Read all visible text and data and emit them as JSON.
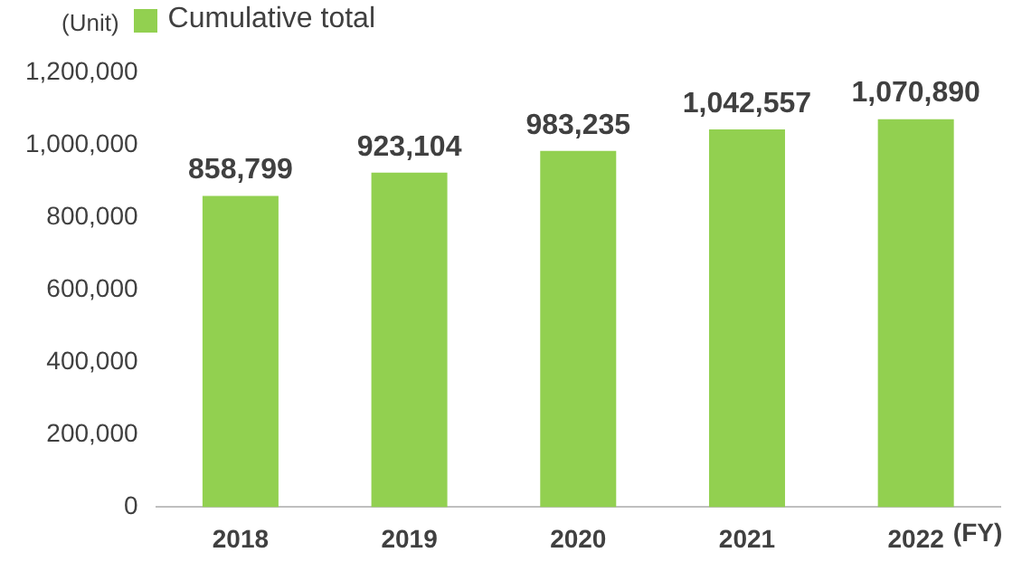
{
  "chart_data": {
    "type": "bar",
    "ylabel": "(Unit)",
    "xlabel": "(FY)",
    "categories": [
      "2018",
      "2019",
      "2020",
      "2021",
      "2022"
    ],
    "series": [
      {
        "name": "Cumulative total",
        "color": "#92d050",
        "values": [
          858799,
          923104,
          983235,
          1042557,
          1070890
        ],
        "value_labels": [
          "858,799",
          "923,104",
          "983,235",
          "1,042,557",
          "1,070,890"
        ]
      }
    ],
    "ylim": [
      0,
      1200000
    ],
    "yticks": [
      0,
      {
        "value": 200000,
        "label": "200,000"
      },
      {
        "value": 400000,
        "label": "400,000"
      },
      {
        "value": 600000,
        "label": "600,000"
      },
      {
        "value": 800000,
        "label": "800,000"
      },
      {
        "value": 1000000,
        "label": "1,000,000"
      },
      {
        "value": 1200000,
        "label": "1,200,000"
      }
    ],
    "grid": false,
    "legend": "top left"
  }
}
